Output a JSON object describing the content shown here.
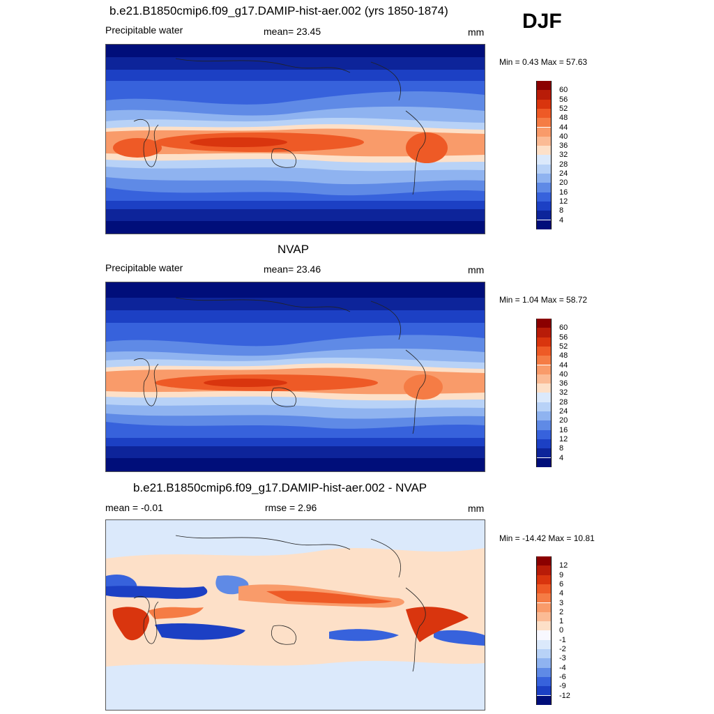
{
  "season": "DJF",
  "panels": [
    {
      "title": "b.e21.B1850cmip6.f09_g17.DAMIP-hist-aer.002 (yrs 1850-1874)",
      "left_label": "Precipitable water",
      "center_label": "mean=  23.45",
      "units": "mm",
      "minmax": "Min =   0.43 Max =  57.63",
      "colorbar_labels": [
        "60",
        "56",
        "52",
        "48",
        "44",
        "40",
        "36",
        "32",
        "28",
        "24",
        "20",
        "16",
        "12",
        "8",
        "4"
      ]
    },
    {
      "title": "NVAP",
      "left_label": "Precipitable water",
      "center_label": "mean=  23.46",
      "units": "mm",
      "minmax": "Min =   1.04 Max =  58.72",
      "colorbar_labels": [
        "60",
        "56",
        "52",
        "48",
        "44",
        "40",
        "36",
        "32",
        "28",
        "24",
        "20",
        "16",
        "12",
        "8",
        "4"
      ]
    },
    {
      "title": "b.e21.B1850cmip6.f09_g17.DAMIP-hist-aer.002 - NVAP",
      "left_label": "mean =  -0.01",
      "center_label": "rmse =   2.96",
      "units": "mm",
      "minmax": "Min = -14.42 Max =  10.81",
      "colorbar_labels": [
        "12",
        "9",
        "6",
        "4",
        "3",
        "2",
        "1",
        "0",
        "-1",
        "-2",
        "-3",
        "-4",
        "-6",
        "-9",
        "-12"
      ]
    }
  ],
  "colors": {
    "abs_scale": [
      "#8b0000",
      "#b81c08",
      "#d9350e",
      "#ee5a26",
      "#f57c45",
      "#f99b6a",
      "#fbbb95",
      "#fde0c8",
      "#dbe9fb",
      "#b8d2f7",
      "#8fb3f0",
      "#5f8ae6",
      "#3762dc",
      "#1c40c4",
      "#0d249a",
      "#000e7a"
    ],
    "diff_scale": [
      "#8b0000",
      "#b81c08",
      "#d9350e",
      "#ee5a26",
      "#f57c45",
      "#f99b6a",
      "#fbbb95",
      "#fde0c8",
      "#f8f8ff",
      "#dbe9fb",
      "#b8d2f7",
      "#8fb3f0",
      "#5f8ae6",
      "#3762dc",
      "#1c40c4",
      "#000e7a"
    ]
  }
}
